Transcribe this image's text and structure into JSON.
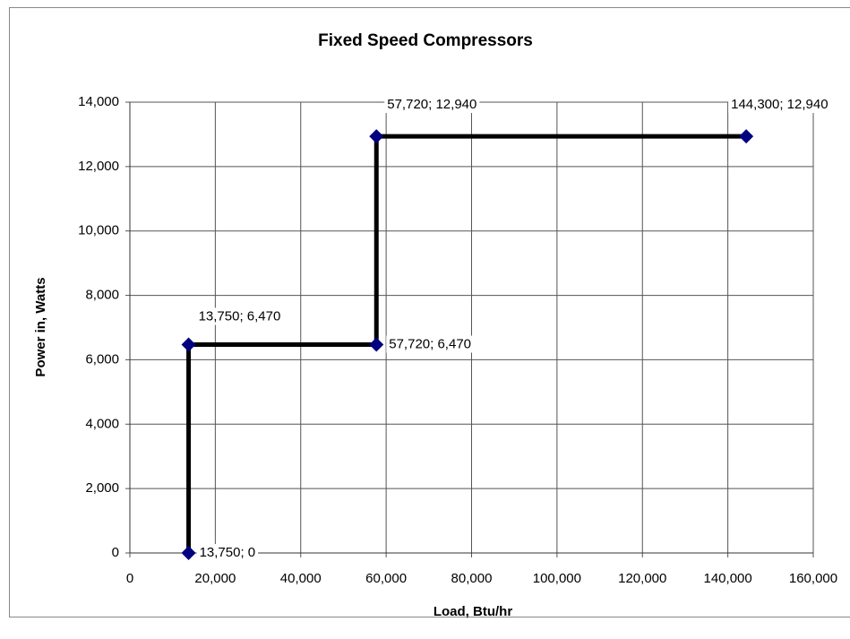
{
  "chart_data": {
    "type": "line",
    "title": "Fixed Speed Compressors",
    "x_label": "Load, Btu/hr",
    "y_label": "Power in, Watts",
    "x": [
      13750,
      13750,
      57720,
      57720,
      144300
    ],
    "values": [
      0,
      6470,
      6470,
      12940,
      12940
    ],
    "value_labels": [
      "13,750; 0",
      "13,750; 6,470",
      "57,720; 6,470",
      "57,720; 12,940",
      "144,300; 12,940"
    ],
    "color": "#000000",
    "marker_color": "#000080",
    "xlim": [
      0,
      160000
    ],
    "xticks": [
      0,
      {
        "value": 20000,
        "label": "20,000"
      },
      {
        "value": 40000,
        "label": "40,000"
      },
      {
        "value": 60000,
        "label": "60,000"
      },
      {
        "value": 80000,
        "label": "80,000"
      },
      {
        "value": 100000,
        "label": "100,000"
      },
      {
        "value": 120000,
        "label": "120,000"
      },
      {
        "value": 140000,
        "label": "140,000"
      },
      {
        "value": 160000,
        "label": "160,000"
      }
    ],
    "ylim": [
      0,
      14000
    ],
    "yticks": [
      0,
      {
        "value": 2000,
        "label": "2,000"
      },
      {
        "value": 4000,
        "label": "4,000"
      },
      {
        "value": 6000,
        "label": "6,000"
      },
      {
        "value": 8000,
        "label": "8,000"
      },
      {
        "value": 10000,
        "label": "10,000"
      },
      {
        "value": 12000,
        "label": "12,000"
      },
      {
        "value": 14000,
        "label": "14,000"
      }
    ],
    "grid": true
  }
}
